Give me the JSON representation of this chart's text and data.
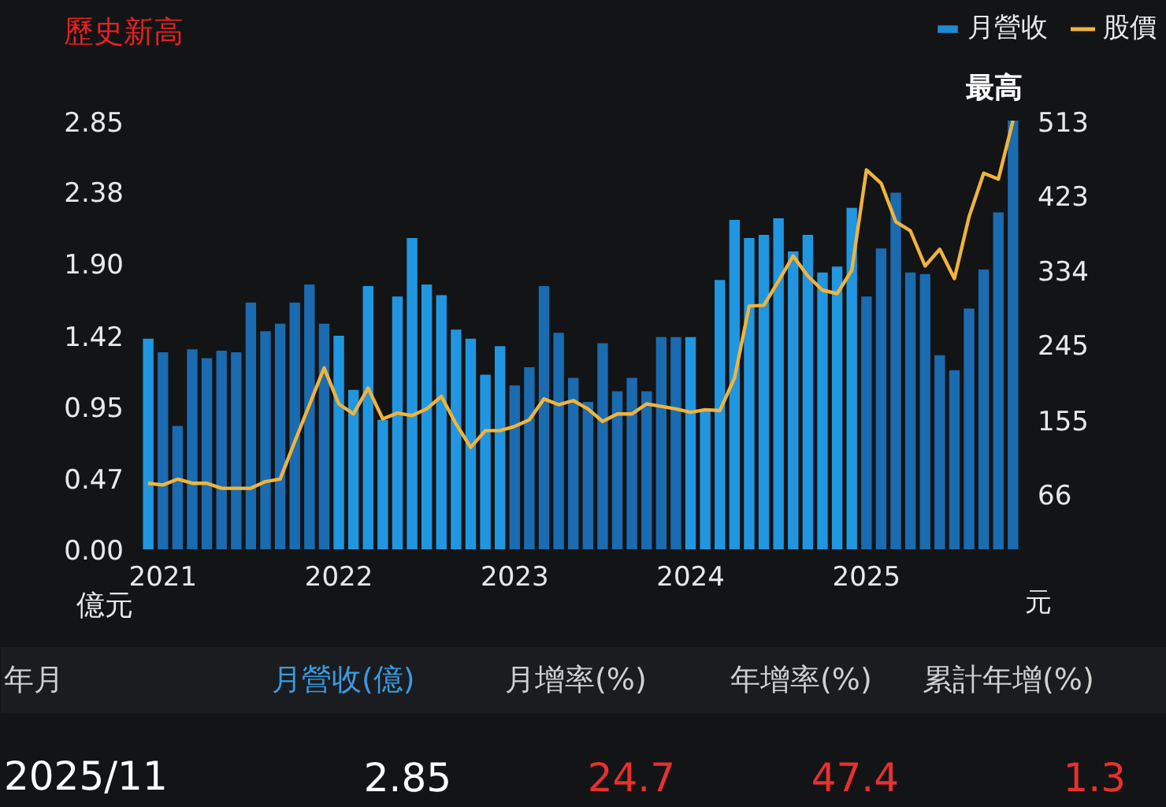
{
  "chart_data": {
    "type": "bar",
    "title": "歷史新高",
    "ylabel": "億元",
    "y2label": "元",
    "categories": [
      null,
      "2021",
      null,
      null,
      null,
      null,
      null,
      null,
      null,
      null,
      null,
      null,
      null,
      "2022",
      null,
      null,
      null,
      null,
      null,
      null,
      null,
      null,
      null,
      null,
      null,
      "2023",
      null,
      null,
      null,
      null,
      null,
      null,
      null,
      null,
      null,
      null,
      null,
      "2024",
      null,
      null,
      null,
      null,
      null,
      null,
      null,
      null,
      null,
      null,
      null,
      "2025",
      null,
      null,
      null,
      null,
      null,
      null,
      null,
      null,
      null,
      null
    ],
    "series": [
      {
        "name": "月營收",
        "color": "#1f8ad6",
        "colors": [
          "#2196e0",
          "#1a6bb0",
          "#1a6bb0",
          "#1a6bb0",
          "#1a6bb0",
          "#1a6bb0",
          "#1a6bb0",
          "#1a6bb0",
          "#1a6bb0",
          "#1a6bb0",
          "#1a6bb0",
          "#1a6bb0",
          "#1a6bb0",
          "#2196e0",
          "#2196e0",
          "#2196e0",
          "#2196e0",
          "#2196e0",
          "#2196e0",
          "#2196e0",
          "#2196e0",
          "#2196e0",
          "#2196e0",
          "#2196e0",
          "#2196e0",
          "#1a6bb0",
          "#1a6bb0",
          "#1a6bb0",
          "#1a6bb0",
          "#1a6bb0",
          "#1a6bb0",
          "#1a6bb0",
          "#1a6bb0",
          "#1a6bb0",
          "#1a6bb0",
          "#1a6bb0",
          "#1a6bb0",
          "#2196e0",
          "#2196e0",
          "#2196e0",
          "#2196e0",
          "#2196e0",
          "#2196e0",
          "#2196e0",
          "#2196e0",
          "#2196e0",
          "#2196e0",
          "#2196e0",
          "#2196e0",
          "#1a6bb0",
          "#1a6bb0",
          "#1a6bb0",
          "#1a6bb0",
          "#1a6bb0",
          "#1a6bb0",
          "#1a6bb0",
          "#1a6bb0",
          "#1a6bb0",
          "#1a6bb0",
          "#1a6bb0"
        ],
        "values": [
          1.4,
          1.31,
          0.82,
          1.33,
          1.27,
          1.32,
          1.31,
          1.64,
          1.45,
          1.5,
          1.64,
          1.76,
          1.5,
          1.42,
          1.06,
          1.75,
          0.86,
          1.68,
          2.07,
          1.76,
          1.69,
          1.46,
          1.4,
          1.16,
          1.35,
          1.09,
          1.21,
          1.75,
          1.44,
          1.14,
          0.98,
          1.37,
          1.05,
          1.14,
          1.05,
          1.41,
          1.41,
          1.41,
          0.93,
          1.79,
          2.19,
          2.07,
          2.09,
          2.2,
          1.98,
          2.09,
          1.84,
          1.88,
          2.27,
          1.68,
          2.0,
          2.37,
          1.84,
          1.83,
          1.29,
          1.19,
          1.6,
          1.86,
          2.24,
          2.85
        ]
      },
      {
        "name": "股價",
        "type": "line",
        "axis": "y2",
        "color": "#f0b43c",
        "values": [
          79,
          77,
          84,
          79,
          79,
          73,
          73,
          73,
          81,
          84,
          129,
          173,
          217,
          174,
          162,
          193,
          156,
          163,
          160,
          168,
          183,
          150,
          122,
          142,
          142,
          147,
          155,
          180,
          173,
          178,
          168,
          153,
          162,
          162,
          174,
          171,
          168,
          164,
          167,
          166,
          205,
          291,
          292,
          321,
          351,
          327,
          310,
          306,
          334,
          454,
          438,
          392,
          381,
          339,
          359,
          324,
          398,
          450,
          443,
          513
        ]
      }
    ],
    "ylim": [
      0,
      2.85
    ],
    "yticks": [
      {
        "value": 0,
        "label": "0.00"
      },
      0.47,
      0.95,
      1.42,
      {
        "value": 1.9,
        "label": "1.90"
      },
      2.38,
      2.85
    ],
    "y2lim": [
      0,
      513
    ],
    "y2ticks": [
      66,
      155,
      245,
      334,
      423,
      513
    ],
    "grid": false,
    "legend": "top right",
    "line_style": "solid",
    "annotations": [
      "最高",
      "年月",
      "月營收(億)",
      "月增率(%)",
      "年增率(%)",
      "累計年增(%)",
      "2025/11",
      "2.85",
      "24.7",
      "47.4",
      "1.3"
    ]
  }
}
